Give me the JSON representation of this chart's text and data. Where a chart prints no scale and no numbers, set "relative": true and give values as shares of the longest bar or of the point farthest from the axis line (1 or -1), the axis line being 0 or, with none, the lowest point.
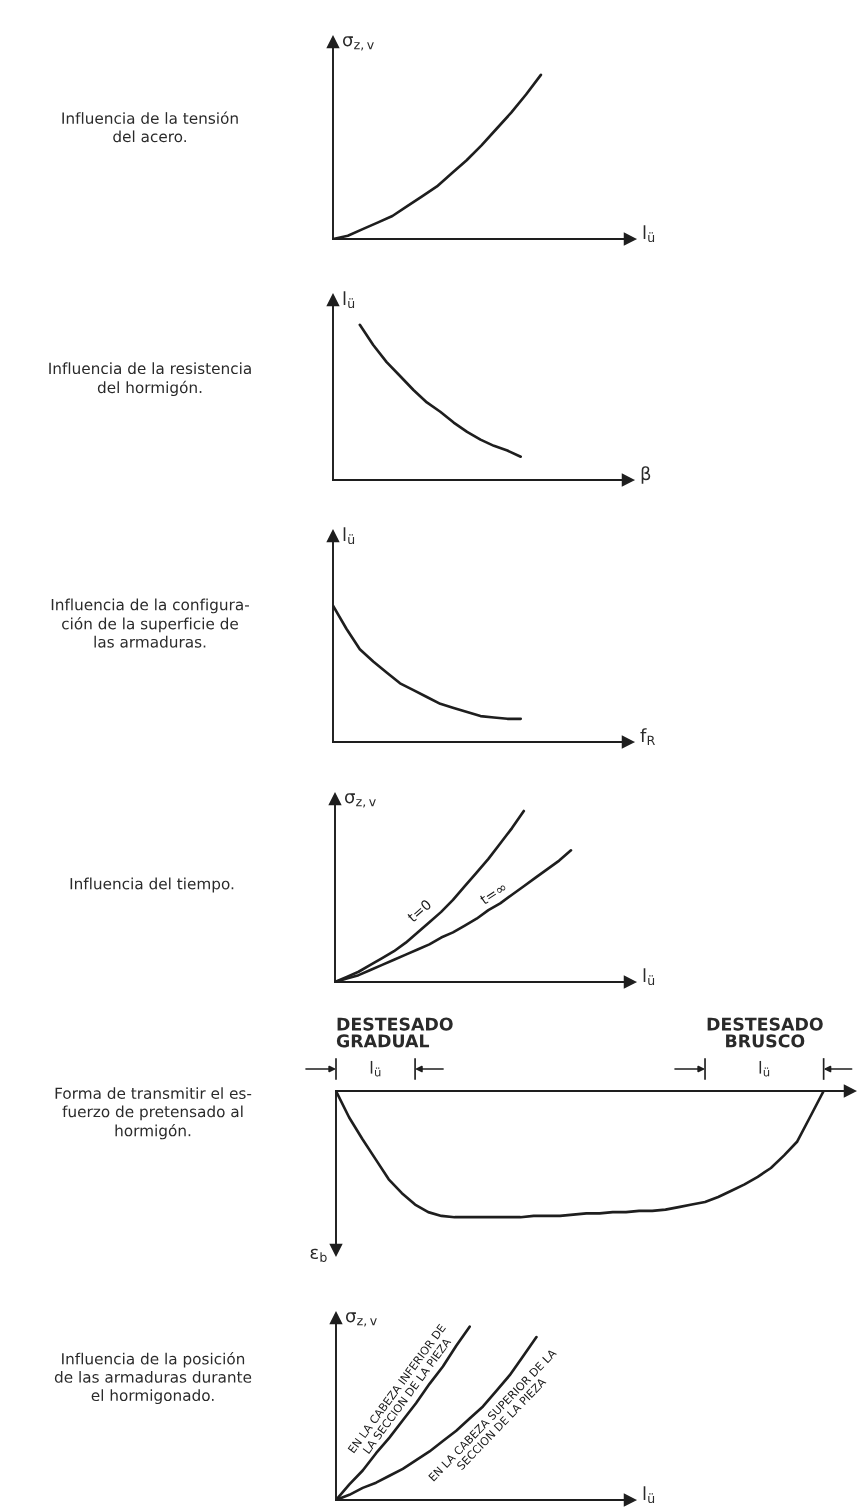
{
  "chart_data": [
    {
      "type": "line",
      "annotations": [
        "Influencia de la tensión\ndel acero."
      ],
      "ylabel": "σ$_{z,v}$",
      "xlabel": "l$_{ü}$",
      "relative": true,
      "categories": [
        null,
        null,
        null,
        null,
        null,
        null,
        null,
        null,
        null,
        null,
        null,
        null,
        null,
        null,
        null,
        null,
        null,
        null,
        null,
        null,
        null
      ],
      "series": [
        {
          "color": "#1e1e1e",
          "values": [
            0,
            0.02,
            0.06,
            0.1,
            0.14,
            0.2,
            0.26,
            0.32,
            0.4,
            0.48,
            0.57,
            0.67,
            0.77,
            0.88,
            1.0,
            null,
            null,
            null,
            null,
            null,
            null
          ]
        }
      ]
    },
    {
      "type": "line",
      "annotations": [
        "Influencia de la resistencia\ndel hormigón."
      ],
      "ylabel": "l$_{ü}$",
      "xlabel": "β",
      "relative": true,
      "categories": [
        null,
        null,
        null,
        null,
        null,
        null,
        null,
        null,
        null,
        null,
        null,
        null,
        null,
        null,
        null,
        null,
        null,
        null,
        null,
        null,
        null,
        null,
        null
      ],
      "series": [
        {
          "color": "#1e1e1e",
          "values": [
            null,
            null,
            1.0,
            0.87,
            0.76,
            0.67,
            0.58,
            0.5,
            0.44,
            0.37,
            0.31,
            0.26,
            0.22,
            0.19,
            0.15,
            null,
            null,
            null,
            null,
            null,
            null,
            null,
            null
          ]
        }
      ]
    },
    {
      "type": "line",
      "annotations": [
        "Influencia de la configura-\nción de la superficie de\nlas armaduras."
      ],
      "ylabel": "l$_{ü}$",
      "xlabel": "f$_{R}$",
      "relative": true,
      "categories": [
        null,
        null,
        null,
        null,
        null,
        null,
        null,
        null,
        null,
        null,
        null,
        null,
        null,
        null,
        null,
        null,
        null,
        null,
        null,
        null,
        null,
        null,
        null
      ],
      "series": [
        {
          "color": "#1e1e1e",
          "values": [
            1.0,
            0.83,
            0.68,
            0.59,
            0.51,
            0.43,
            0.38,
            0.33,
            0.28,
            0.25,
            0.22,
            0.19,
            0.18,
            0.17,
            0.17,
            null,
            null,
            null,
            null,
            null,
            null,
            null,
            null
          ]
        }
      ]
    },
    {
      "type": "line",
      "annotations": [
        "Influencia del tiempo."
      ],
      "ylabel": "σ$_{z,v}$",
      "xlabel": "l$_{ü}$",
      "relative": true,
      "categories": [
        null,
        null,
        null,
        null,
        null,
        null,
        null,
        null,
        null,
        null,
        null,
        null,
        null,
        null,
        null,
        null,
        null,
        null,
        null,
        null,
        null,
        null,
        null,
        null,
        null,
        null
      ],
      "series": [
        {
          "name": "t=0",
          "color": "#1e1e1e",
          "values": [
            0,
            0.03,
            0.06,
            0.1,
            0.14,
            0.18,
            0.23,
            0.29,
            0.35,
            0.41,
            0.48,
            0.56,
            0.64,
            0.72,
            0.81,
            0.9,
            1.0,
            null,
            null,
            null,
            null,
            null,
            null,
            null,
            null,
            null
          ]
        },
        {
          "name": "t=∞",
          "color": "#1e1e1e",
          "values": [
            0,
            0.02,
            0.04,
            0.07,
            0.1,
            0.13,
            0.16,
            0.19,
            0.22,
            0.26,
            0.29,
            0.33,
            0.37,
            0.42,
            0.46,
            0.51,
            0.56,
            0.61,
            0.66,
            0.71,
            0.77,
            null,
            null,
            null,
            null,
            null
          ]
        }
      ]
    },
    {
      "type": "line",
      "annotations": [
        "Forma de transmitir el es-\nfuerzo de pretensado al\nhormigón.",
        "DESTESADO\nGRADUAL",
        "l$_{ü}$",
        "DESTESADO\nBRUSCO",
        "l$_{ü}$"
      ],
      "ylabel": "ε$_{b}$",
      "relative": true,
      "categories": [
        null,
        null,
        null,
        null,
        null,
        null,
        null,
        null,
        null,
        null,
        null,
        null,
        null,
        null,
        null,
        null,
        null,
        null,
        null,
        null,
        null,
        null,
        null,
        null,
        null,
        null,
        null,
        null,
        null,
        null,
        null,
        null,
        null,
        null,
        null,
        null,
        null,
        null,
        null,
        null
      ],
      "series": [
        {
          "color": "#1e1e1e",
          "values": [
            0,
            -0.21,
            -0.38,
            -0.54,
            -0.7,
            -0.81,
            -0.9,
            -0.96,
            -0.99,
            -1.0,
            -1.0,
            -1.0,
            -1.0,
            -1.0,
            -1.0,
            -0.99,
            -0.99,
            -0.99,
            -0.98,
            -0.97,
            -0.97,
            -0.96,
            -0.96,
            -0.95,
            -0.95,
            -0.94,
            -0.92,
            -0.9,
            -0.88,
            -0.84,
            -0.79,
            -0.74,
            -0.68,
            -0.61,
            -0.51,
            -0.4,
            -0.2,
            0,
            null,
            null
          ]
        }
      ]
    },
    {
      "type": "line",
      "annotations": [
        "Influencia de la posición\nde las armaduras durante\nel hormigonado."
      ],
      "ylabel": "σ$_{z,v}$",
      "xlabel": "l$_{ü}$",
      "relative": true,
      "categories": [
        null,
        null,
        null,
        null,
        null,
        null,
        null,
        null,
        null,
        null,
        null,
        null,
        null,
        null,
        null,
        null,
        null,
        null,
        null,
        null,
        null,
        null,
        null
      ],
      "series": [
        {
          "name": "EN LA CABEZA INFERIOR DE\nLA SECCION DE LA PIEZA",
          "color": "#1e1e1e",
          "values": [
            0,
            0.09,
            0.17,
            0.27,
            0.36,
            0.46,
            0.56,
            0.67,
            0.77,
            0.89,
            1.0,
            null,
            null,
            null,
            null,
            null,
            null,
            null,
            null,
            null,
            null,
            null,
            null
          ]
        },
        {
          "name": "EN LA CABEZA SUPERIOR DE LA\nSECCION DE LA PIEZA",
          "color": "#1e1e1e",
          "values": [
            0,
            0.03,
            0.07,
            0.1,
            0.14,
            0.18,
            0.23,
            0.28,
            0.34,
            0.4,
            0.47,
            0.54,
            0.63,
            0.72,
            0.83,
            0.94,
            null,
            null,
            null,
            null,
            null,
            null,
            null
          ]
        }
      ]
    }
  ]
}
